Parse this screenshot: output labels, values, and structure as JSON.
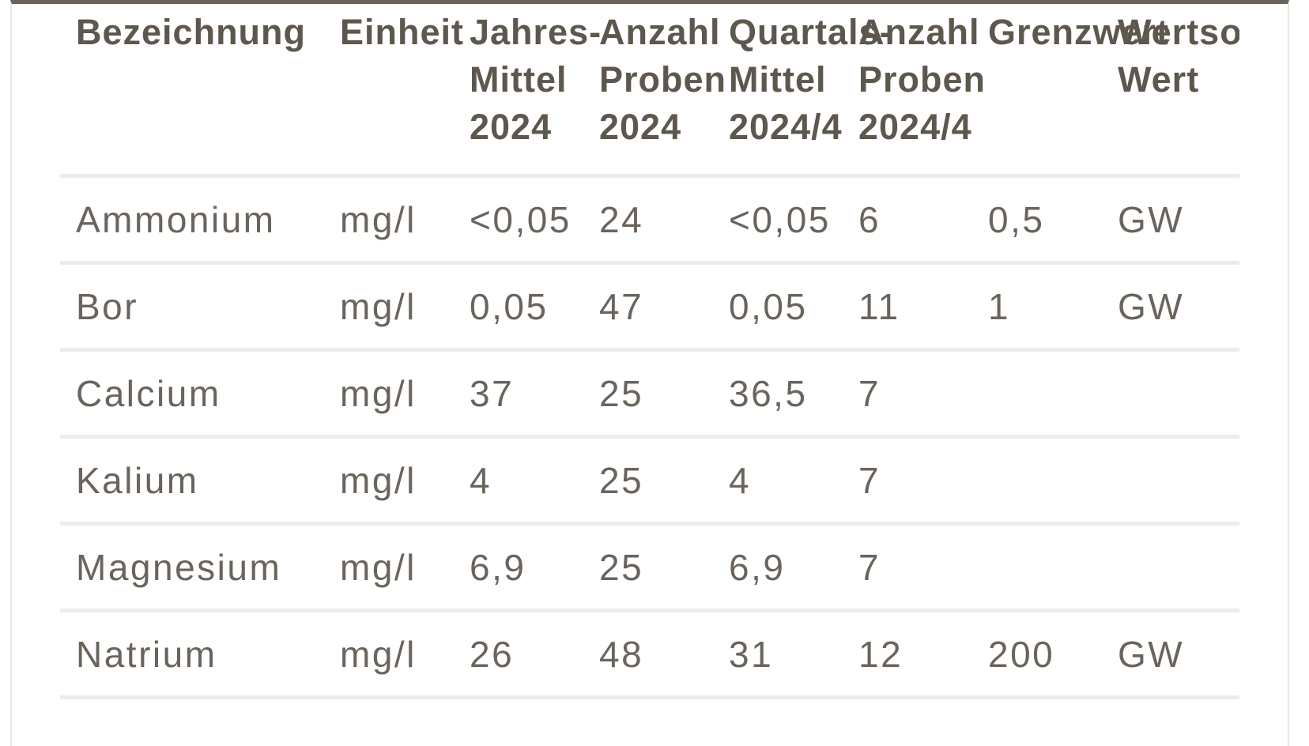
{
  "table": {
    "columns": [
      {
        "lines": [
          "Bezeichnung",
          "",
          ""
        ]
      },
      {
        "lines": [
          "Einheit",
          "",
          ""
        ]
      },
      {
        "lines": [
          "Jahres-",
          "Mittel",
          "2024"
        ]
      },
      {
        "lines": [
          "Anzahl",
          "Proben",
          "2024"
        ]
      },
      {
        "lines": [
          "Quartals-",
          "Mittel",
          "2024/4"
        ]
      },
      {
        "lines": [
          "Anzahl",
          "Proben",
          "2024/4"
        ]
      },
      {
        "lines": [
          "Grenzwert",
          "",
          ""
        ]
      },
      {
        "lines": [
          "Wertsorte",
          "Wert",
          ""
        ]
      }
    ],
    "rows": [
      {
        "cells": [
          "Ammonium",
          "mg/l",
          "<0,05",
          "24",
          "<0,05",
          "6",
          "0,5",
          "GW"
        ]
      },
      {
        "cells": [
          "Bor",
          "mg/l",
          "0,05",
          "47",
          "0,05",
          "11",
          "1",
          "GW"
        ]
      },
      {
        "cells": [
          "Calcium",
          "mg/l",
          "37",
          "25",
          "36,5",
          "7",
          "",
          ""
        ]
      },
      {
        "cells": [
          "Kalium",
          "mg/l",
          "4",
          "25",
          "4",
          "7",
          "",
          ""
        ]
      },
      {
        "cells": [
          "Magnesium",
          "mg/l",
          "6,9",
          "25",
          "6,9",
          "7",
          "",
          ""
        ]
      },
      {
        "cells": [
          "Natrium",
          "mg/l",
          "26",
          "48",
          "31",
          "12",
          "200",
          "GW"
        ]
      }
    ]
  },
  "colors": {
    "header_text": "#5e574e",
    "body_text": "#6b645c",
    "row_separator": "#eeecea",
    "top_border": "#6b635a",
    "card_border": "#e7e5e2",
    "background": "#ffffff"
  }
}
